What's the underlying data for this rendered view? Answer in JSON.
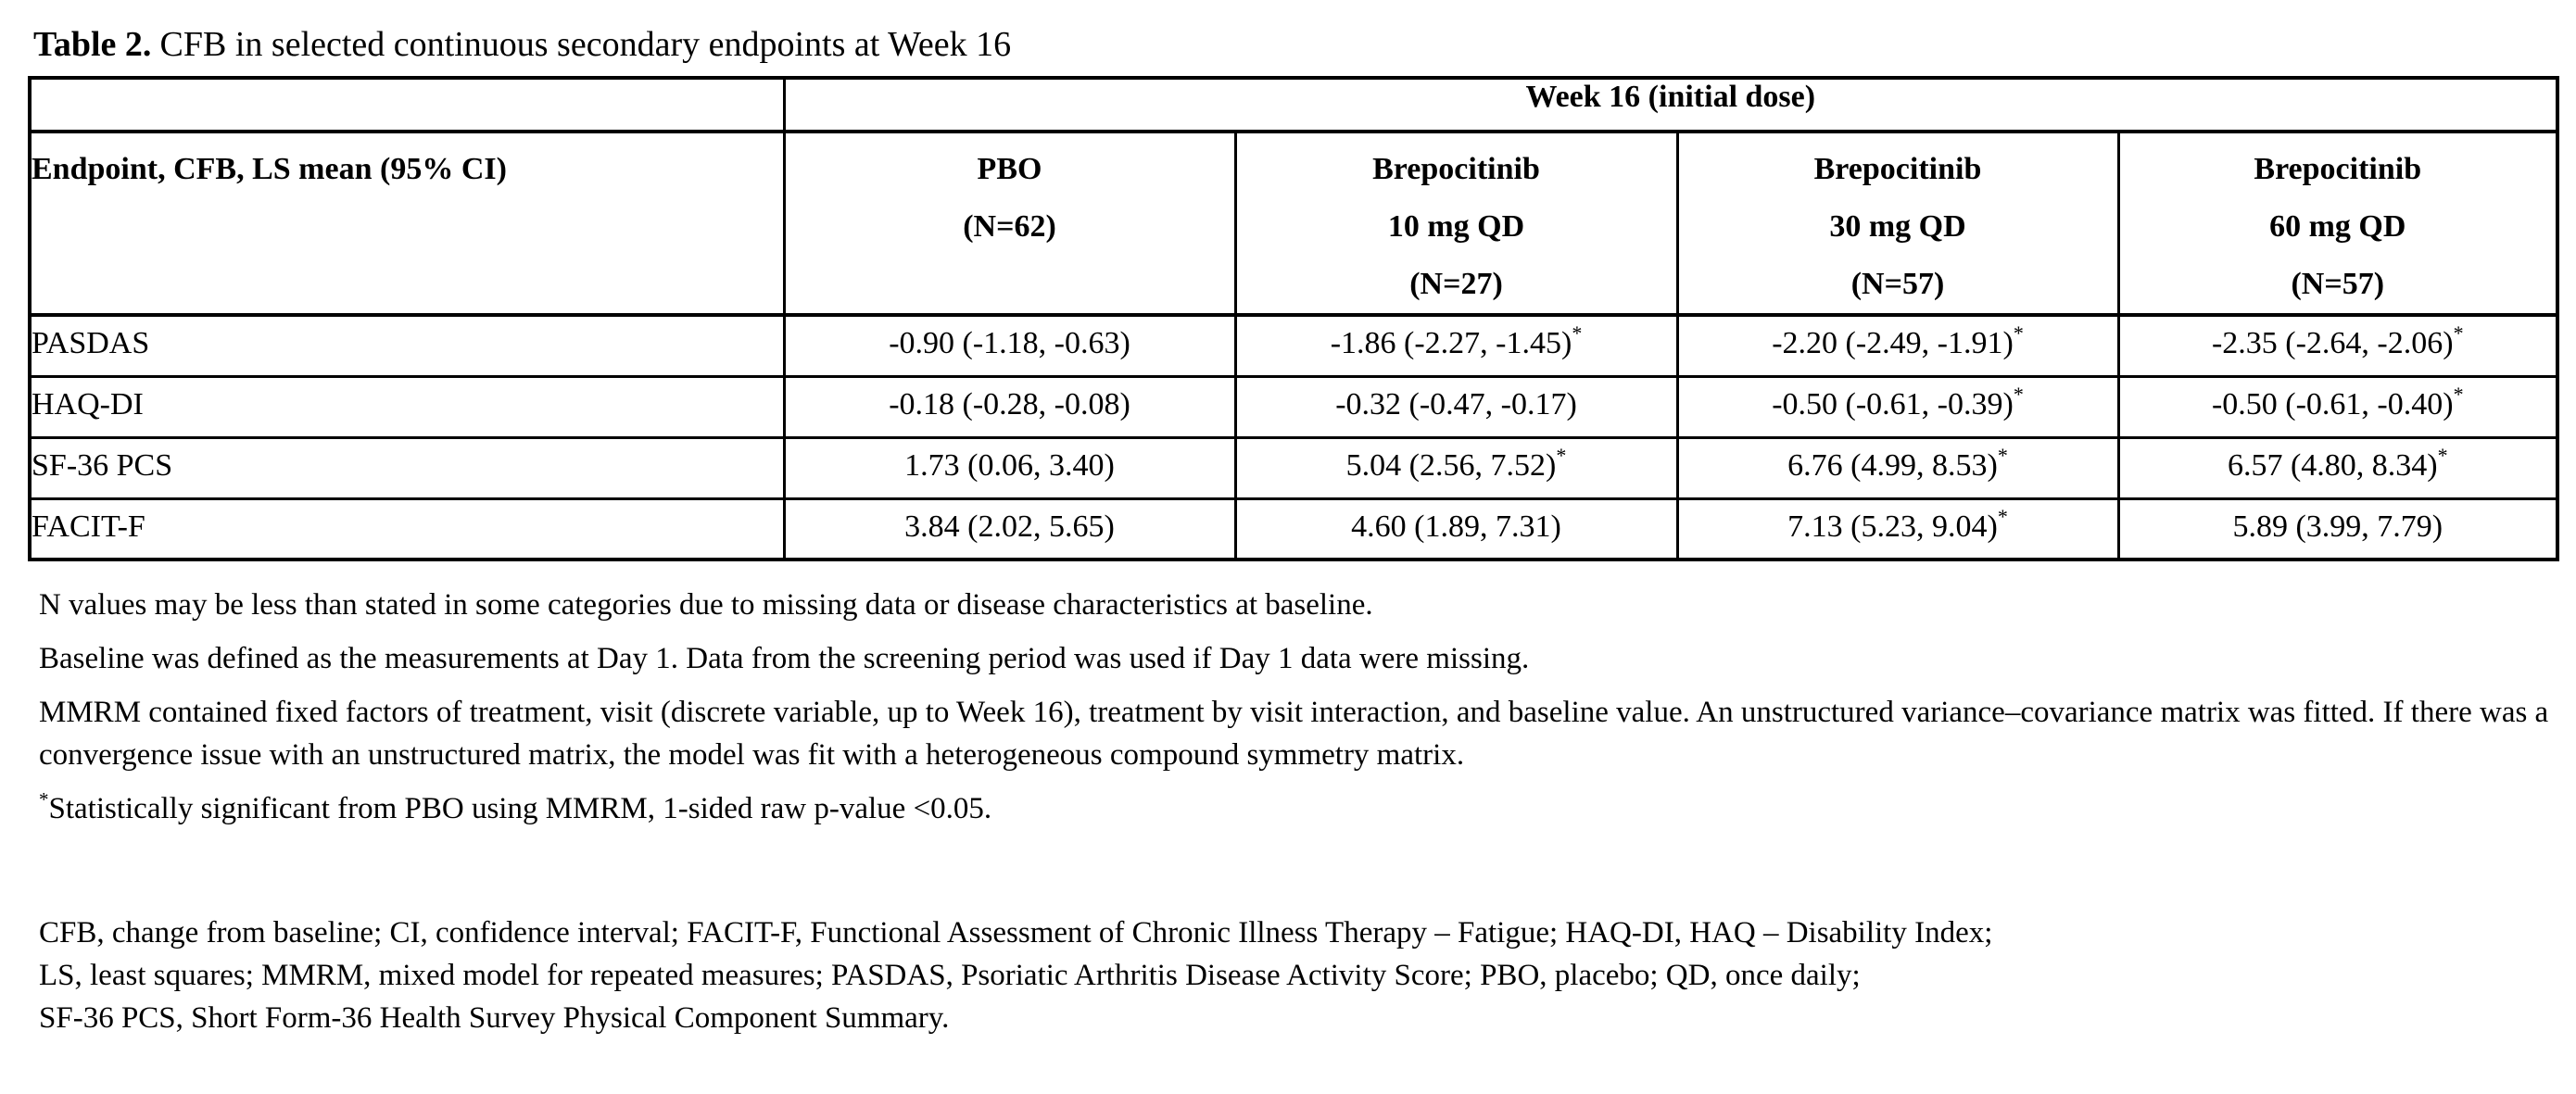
{
  "caption": {
    "label": "Table 2.",
    "text": "CFB in selected continuous secondary endpoints at Week 16"
  },
  "table": {
    "span_header": "Week 16 (initial dose)",
    "row_header": "Endpoint, CFB, LS mean (95% CI)",
    "significance_marker": "*",
    "columns": [
      {
        "lines": [
          "PBO",
          "(N=62)"
        ]
      },
      {
        "lines": [
          "Brepocitinib",
          "10 mg QD",
          "(N=27)"
        ]
      },
      {
        "lines": [
          "Brepocitinib",
          "30 mg QD",
          "(N=57)"
        ]
      },
      {
        "lines": [
          "Brepocitinib",
          "60 mg QD",
          "(N=57)"
        ]
      }
    ],
    "rows": [
      {
        "endpoint": "PASDAS",
        "values": [
          {
            "text": "-0.90 (-1.18, -0.63)",
            "significant": false
          },
          {
            "text": "-1.86 (-2.27, -1.45)",
            "significant": true
          },
          {
            "text": "-2.20 (-2.49, -1.91)",
            "significant": true
          },
          {
            "text": "-2.35 (-2.64, -2.06)",
            "significant": true
          }
        ]
      },
      {
        "endpoint": "HAQ-DI",
        "values": [
          {
            "text": "-0.18 (-0.28, -0.08)",
            "significant": false
          },
          {
            "text": "-0.32 (-0.47, -0.17)",
            "significant": false
          },
          {
            "text": "-0.50 (-0.61, -0.39)",
            "significant": true
          },
          {
            "text": "-0.50 (-0.61, -0.40)",
            "significant": true
          }
        ]
      },
      {
        "endpoint": "SF-36 PCS",
        "values": [
          {
            "text": "1.73 (0.06, 3.40)",
            "significant": false
          },
          {
            "text": "5.04 (2.56, 7.52)",
            "significant": true
          },
          {
            "text": "6.76 (4.99, 8.53)",
            "significant": true
          },
          {
            "text": "6.57 (4.80, 8.34)",
            "significant": true
          }
        ]
      },
      {
        "endpoint": "FACIT-F",
        "values": [
          {
            "text": "3.84 (2.02, 5.65)",
            "significant": false
          },
          {
            "text": "4.60 (1.89, 7.31)",
            "significant": false
          },
          {
            "text": "7.13 (5.23, 9.04)",
            "significant": true
          },
          {
            "text": "5.89 (3.99, 7.79)",
            "significant": false
          }
        ]
      }
    ]
  },
  "footnotes": {
    "n_values": "N values may be less than stated in some categories due to missing data or disease characteristics at baseline.",
    "baseline": "Baseline was defined as the measurements at Day 1. Data from the screening period was used if Day 1 data were missing.",
    "mmrm": "MMRM contained fixed factors of treatment, visit (discrete variable, up to Week 16), treatment by visit interaction, and baseline value. An unstructured variance–covariance matrix was fitted. If there was a convergence issue with an unstructured matrix, the model was fit with a heterogeneous compound symmetry matrix.",
    "significance_marker": "*",
    "significance": "Statistically significant from PBO using MMRM, 1-sided raw p-value <0.05.",
    "abbreviations": [
      "CFB, change from baseline; CI, confidence interval; FACIT-F, Functional Assessment of Chronic Illness Therapy – Fatigue; HAQ-DI, HAQ – Disability Index;",
      "LS, least squares; MMRM, mixed model for repeated measures; PASDAS, Psoriatic Arthritis Disease Activity Score; PBO, placebo; QD, once daily;",
      "SF-36 PCS, Short Form-36 Health Survey Physical Component Summary."
    ]
  }
}
